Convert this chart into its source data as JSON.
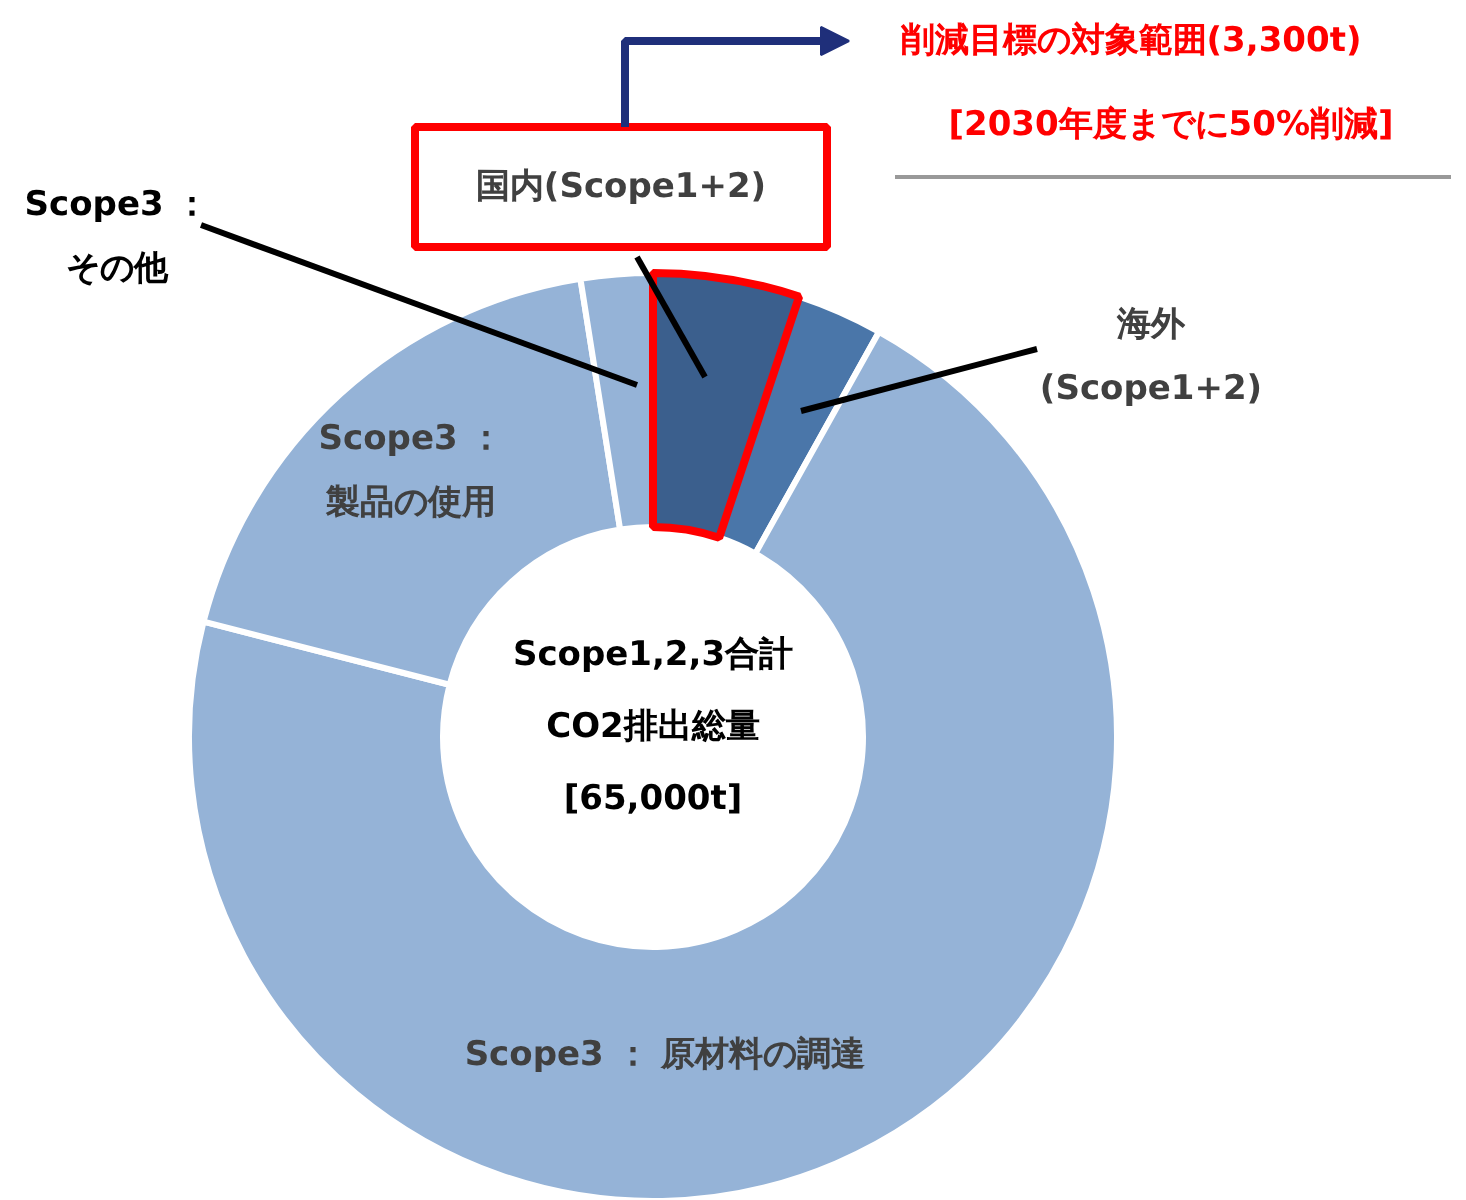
{
  "chart_data": {
    "type": "donut",
    "title": "Scope1,2,3合計\nCO2排出総量\n[65,000t]",
    "categories": [
      "国内(Scope1+2)",
      "海外(Scope1+2)",
      "Scope3 ： 原材料の調達",
      "Scope3 ：製品の使用",
      "Scope3 ：その他"
    ],
    "values": [
      5.1,
      3.0,
      70.9,
      18.5,
      2.5
    ],
    "colors": [
      "#3b5f8d",
      "#4a76a9",
      "#95b3d7",
      "#95b3d7",
      "#95b3d7"
    ],
    "annotations": [
      {
        "text": "削減目標の対象範囲(3,300t)",
        "x": "国内(Scope1+2)"
      },
      "[2030年度までに50%削減]"
    ]
  }
}
